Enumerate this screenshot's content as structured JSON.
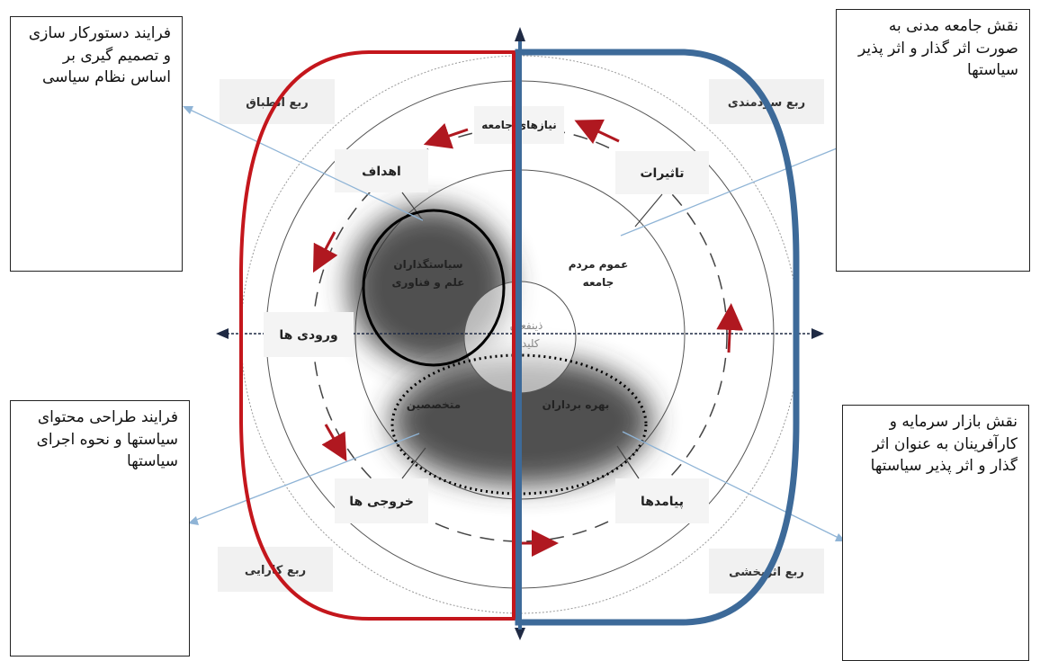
{
  "side_boxes": {
    "top_left": "فرایند دستورکار سازی و تصمیم گیری بر اساس نظام سیاسی",
    "top_right": "نقش جامعه مدنی به صورت اثر گذار و اثر پذیر سیاستها",
    "bottom_left": "فرایند طراحی محتوای سیاستها و نحوه اجرای سیاستها",
    "bottom_right": "نقش بازار سرمایه و کارآفرینان به عنوان اثر گذار و اثر پذیر سیاستها"
  },
  "quadrants": {
    "top_left": "ربع انطباق",
    "top_right": "ربع سودمندی",
    "bottom_left": "ربع کارایی",
    "bottom_right": "ربع اثربخشی"
  },
  "stages": {
    "needs": "نیازهای جامعه",
    "goals": "اهداف",
    "impacts": "تاثیرات",
    "inputs": "ورودی ها",
    "outputs": "خروجی ها",
    "outcomes": "پیامدها"
  },
  "actors": {
    "policymakers_line1": "سیاستگذاران",
    "policymakers_line2": "علم و فناوری",
    "public_line1": "عموم مردم",
    "public_line2": "جامعه",
    "experts": "متخصصین",
    "beneficiaries": "بهره برداران",
    "center_line1": "ذینفعان",
    "center_line2": "کلیدی"
  },
  "colors": {
    "red_half": "#c4161c",
    "blue_half": "#3d6a99",
    "arrow_red": "#b01820",
    "axis": "#1f2a44",
    "pointer": "#8fb4d6"
  }
}
